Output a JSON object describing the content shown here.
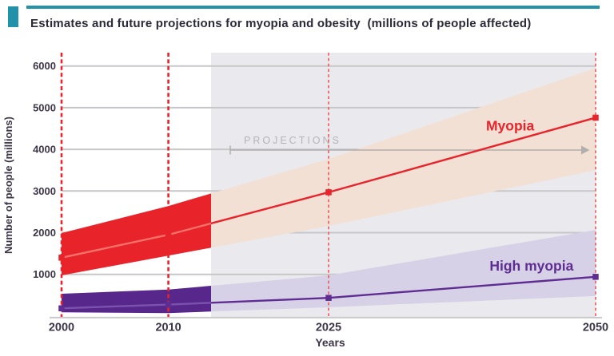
{
  "header": {
    "title": "Estimates and future projections for myopia and obesity  (millions of people affected)",
    "accent_color": "#2292ab"
  },
  "chart_data": {
    "type": "line",
    "title": "Estimates and future projections for myopia and obesity (millions of people affected)",
    "xlabel": "Years",
    "ylabel": "Number of people (millions)",
    "x_ticks": [
      "2000",
      "2010",
      "2025",
      "2050"
    ],
    "x_tick_years": [
      2000,
      2010,
      2025,
      2050
    ],
    "y_ticks": [
      6000,
      5000,
      4000,
      3000,
      2000,
      1000
    ],
    "xlim": [
      2000,
      2050
    ],
    "ylim": [
      0,
      6000
    ],
    "grid": true,
    "legend_position": "inline-labels",
    "colors": {
      "grid_line": "#c7c7ca",
      "axis_line": "#c9c9c9",
      "tick_text": "#3d3648",
      "projection_bg": "#eaeaee",
      "event_line_strong": "#e8232a",
      "event_line_light": "#ec5a5a",
      "arrow": "#b3aeae",
      "projections_text": "#b5b3b8"
    },
    "projection": {
      "start_year": 2014,
      "label": "PROJECTIONS"
    },
    "event_line_years_strong": [
      2000,
      2010
    ],
    "event_line_years_light": [
      2025,
      2050
    ],
    "series": [
      {
        "name": "Myopia",
        "color": "#e8232a",
        "line_color_historical": "#f4716b",
        "band_color_historical": "#e8232a",
        "band_color_projection": "#f3e0d5",
        "x": [
          2000,
          2010,
          2025,
          2050
        ],
        "values": [
          1400,
          1950,
          2970,
          4760
        ],
        "ci_lower": [
          975,
          1450,
          2160,
          3500
        ],
        "ci_upper": [
          1990,
          2640,
          3770,
          5950
        ],
        "label": {
          "text": "Myopia",
          "year": 2042,
          "dy": -14
        }
      },
      {
        "name": "High myopia",
        "color": "#5f2d91",
        "line_color_historical": "#7a52ad",
        "band_color_historical": "#57278c",
        "band_color_projection": "#d7d1e7",
        "x": [
          2000,
          2010,
          2025,
          2050
        ],
        "values": [
          185,
          275,
          435,
          940
        ],
        "ci_lower": [
          90,
          70,
          210,
          480
        ],
        "ci_upper": [
          535,
          635,
          975,
          2065
        ],
        "label": {
          "text": "High myopia",
          "year": 2044,
          "dy": -14
        }
      }
    ]
  }
}
